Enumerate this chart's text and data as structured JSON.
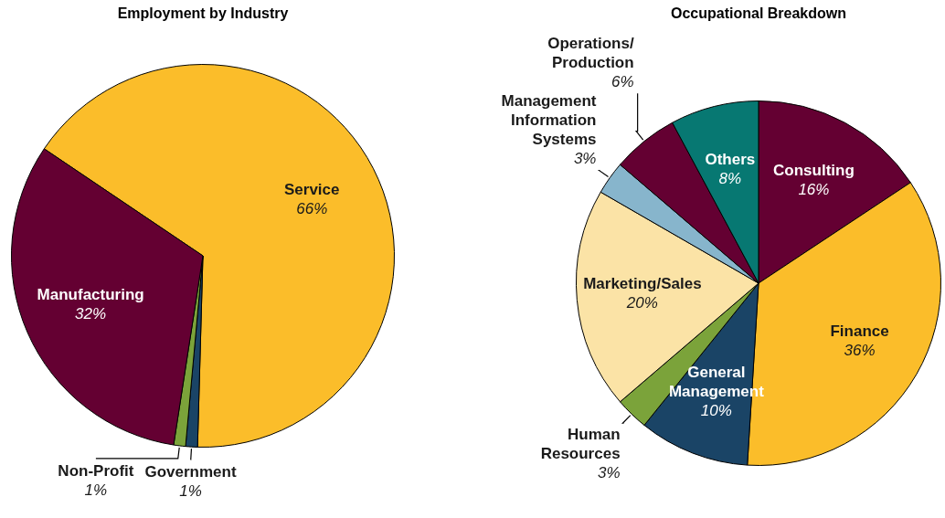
{
  "chart_data": [
    {
      "type": "pie",
      "title": "Employment by Industry",
      "legend": false,
      "categories": [
        "Service",
        "Government",
        "Non-Profit",
        "Manufacturing"
      ],
      "values": [
        66,
        1,
        1,
        32
      ],
      "value_labels": [
        "66%",
        "1%",
        "1%",
        "32%"
      ],
      "colors": [
        "#fbbd2a",
        "#1a4466",
        "#7ba33a",
        "#640032"
      ]
    },
    {
      "type": "pie",
      "title": "Occupational Breakdown",
      "legend": false,
      "categories": [
        "Consulting",
        "Finance",
        "General Management",
        "Human Resources",
        "Marketing/Sales",
        "Management Information Systems",
        "Operations/Production",
        "Others"
      ],
      "values": [
        16,
        36,
        10,
        3,
        20,
        3,
        6,
        8
      ],
      "value_labels": [
        "16%",
        "36%",
        "10%",
        "3%",
        "20%",
        "3%",
        "6%",
        "8%"
      ],
      "colors": [
        "#640032",
        "#fbbd2a",
        "#1a4466",
        "#7ba33a",
        "#fbe3a6",
        "#87b5cc",
        "#640032",
        "#077872"
      ]
    }
  ]
}
